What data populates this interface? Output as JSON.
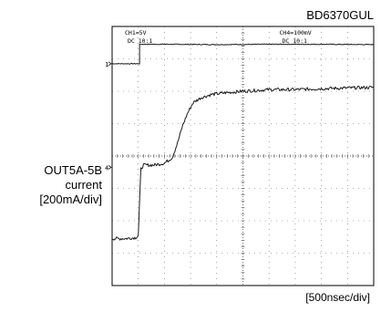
{
  "chart_data": {
    "type": "line",
    "title": "BD6370GUL",
    "xlabel": "[500nsec/div]",
    "ylabel_lines": [
      "OUT5A-5B",
      "current",
      "[200mA/div]"
    ],
    "x_divisions": 10,
    "y_divisions": 8,
    "xlim": [
      0,
      10
    ],
    "ylim": [
      0,
      8
    ],
    "grid": true,
    "channel_labels": [
      {
        "line1": "CH1=5V",
        "line2": "DC 10:1"
      },
      {
        "line1": "CH4=100mV",
        "line2": "DC 10:1"
      }
    ],
    "markers": [
      {
        "text": "1",
        "y": 6.85
      },
      {
        "text": "4",
        "y": 3.65
      }
    ],
    "series": [
      {
        "name": "CH1",
        "x": [
          0,
          1.05,
          1.05,
          2.0,
          4.0,
          6.0,
          8.0,
          10.0
        ],
        "y": [
          6.85,
          6.85,
          7.45,
          7.45,
          7.44,
          7.45,
          7.45,
          7.44
        ]
      },
      {
        "name": "CH4",
        "x": [
          0,
          0.5,
          0.9,
          1.0,
          1.1,
          1.2,
          1.6,
          2.0,
          2.3,
          2.5,
          2.7,
          2.9,
          3.1,
          3.4,
          3.8,
          4.3,
          5.0,
          6.0,
          7.0,
          8.0,
          9.0,
          10.0
        ],
        "y": [
          1.45,
          1.45,
          1.48,
          1.55,
          3.6,
          3.72,
          3.72,
          3.78,
          3.95,
          4.4,
          4.95,
          5.35,
          5.65,
          5.8,
          5.9,
          5.95,
          6.0,
          6.05,
          6.05,
          6.08,
          6.1,
          6.12
        ]
      }
    ]
  }
}
